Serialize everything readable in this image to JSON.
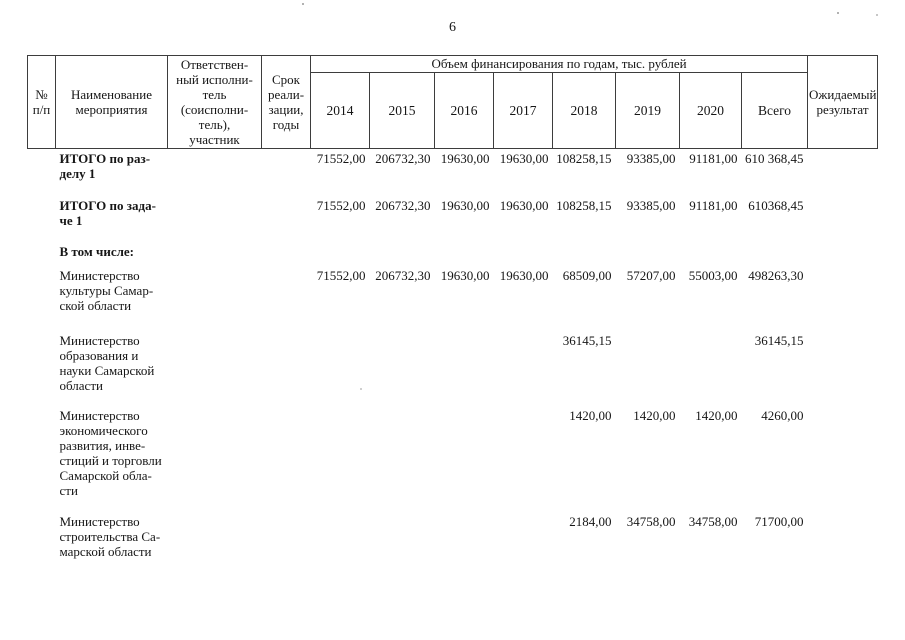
{
  "page_number": "6",
  "table": {
    "columns": {
      "num": "№\nп/п",
      "name": "Наименование\nмероприятия",
      "executor": "Ответствен-\nный исполни-\nтель\n(соисполни-\nтель),\nучастник",
      "term": "Срок\nреали-\nзации,\nгоды",
      "finance_group": "Объем финансирования по годам, тыс. рублей",
      "years": [
        "2014",
        "2015",
        "2016",
        "2017",
        "2018",
        "2019",
        "2020",
        "Всего"
      ],
      "result": "Ожидаемый\nрезультат"
    },
    "rows": [
      {
        "name": "ИТОГО по раз-\nделу 1",
        "values": [
          "71552,00",
          "206732,30",
          "19630,00",
          "19630,00",
          "108258,15",
          "93385,00",
          "91181,00",
          "610 368,45"
        ]
      },
      {
        "name": "ИТОГО по зада-\nче 1",
        "values": [
          "71552,00",
          "206732,30",
          "19630,00",
          "19630,00",
          "108258,15",
          "93385,00",
          "91181,00",
          "610368,45"
        ]
      },
      {
        "name": "В том числе:",
        "values": [
          "",
          "",
          "",
          "",
          "",
          "",
          "",
          ""
        ]
      },
      {
        "name": "Министерство\nкультуры Самар-\nской области",
        "values": [
          "71552,00",
          "206732,30",
          "19630,00",
          "19630,00",
          "68509,00",
          "57207,00",
          "55003,00",
          "498263,30"
        ]
      },
      {
        "name": "Министерство\nобразования и\nнауки Самарской\nобласти",
        "values": [
          "",
          "",
          "",
          "",
          "36145,15",
          "",
          "",
          "36145,15"
        ]
      },
      {
        "name": "Министерство\nэкономического\nразвития, инве-\nстиций и торговли\nСамарской обла-\nсти",
        "values": [
          "",
          "",
          "",
          "",
          "1420,00",
          "1420,00",
          "1420,00",
          "4260,00"
        ]
      },
      {
        "name": "Министерство\nстроительства Са-\nмарской области",
        "values": [
          "",
          "",
          "",
          "",
          "2184,00",
          "34758,00",
          "34758,00",
          "71700,00"
        ]
      }
    ]
  }
}
